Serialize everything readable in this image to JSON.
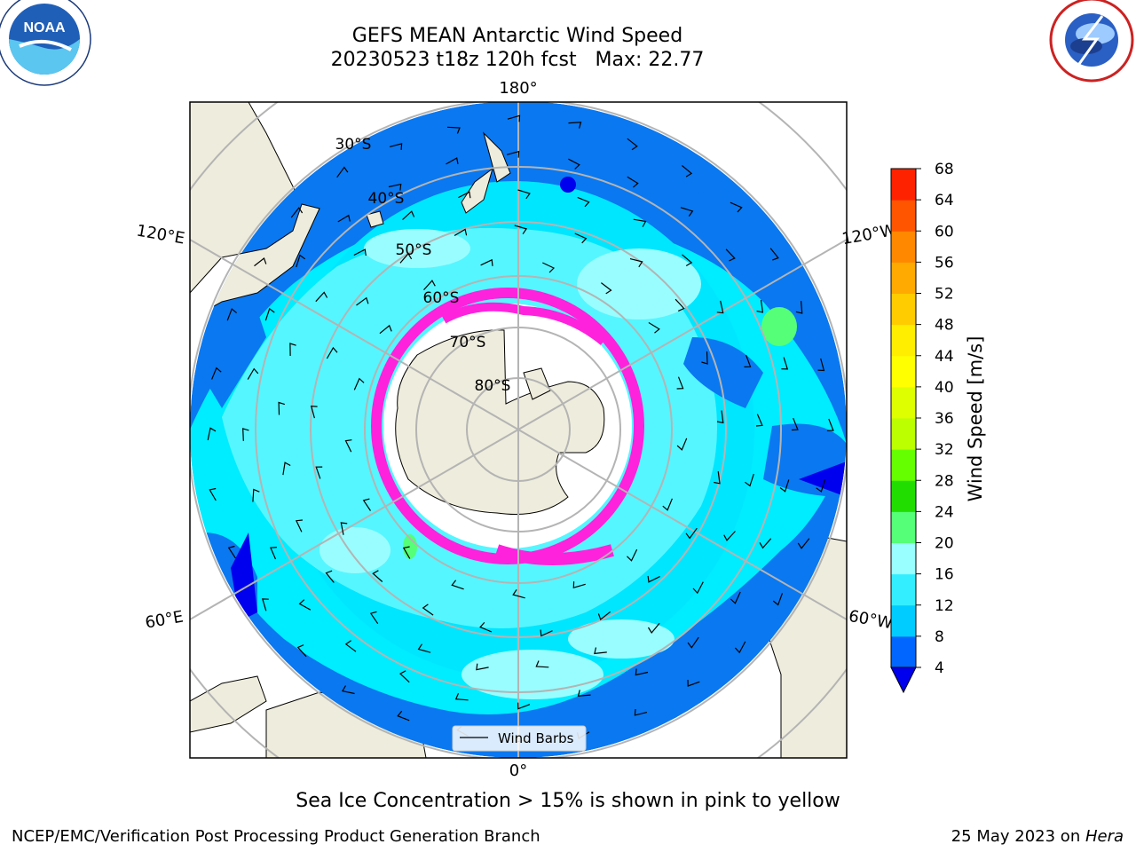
{
  "title": "GEFS MEAN Antarctic Wind Speed",
  "subtitle": "20230523 t18z 120h fcst   Max: 22.77",
  "caption": "Sea Ice Concentration > 15% is shown in pink to yellow",
  "footer_left": "NCEP/EMC/Verification Post Processing Product Generation Branch",
  "footer_right_date": "25 May 2023 on ",
  "footer_right_host": "Hera",
  "logos": {
    "left": "NOAA",
    "right": "NATIONAL WEATHER SERVICE"
  },
  "map": {
    "projection": "south-polar-stereographic",
    "lon_labels": {
      "top": "180°",
      "bottom": "0°",
      "upper_left": "120°E",
      "upper_right": "120°W",
      "lower_left": "60°E",
      "lower_right": "60°W"
    },
    "lat_labels": [
      "30°S",
      "40°S",
      "50°S",
      "60°S",
      "70°S",
      "80°S"
    ],
    "legend": "Wind Barbs"
  },
  "colorbar": {
    "label": "Wind Speed [m/s]",
    "ticks": [
      "4",
      "8",
      "12",
      "16",
      "20",
      "24",
      "28",
      "32",
      "36",
      "40",
      "44",
      "48",
      "52",
      "56",
      "60",
      "64",
      "68"
    ],
    "colors": [
      "#0066ff",
      "#00ccff",
      "#33eeff",
      "#99ffff",
      "#55ff77",
      "#22dd00",
      "#66ff00",
      "#bbff00",
      "#ddff00",
      "#ffff00",
      "#ffee00",
      "#ffcc00",
      "#ffaa00",
      "#ff8800",
      "#ff5500",
      "#ff2200"
    ],
    "extend_color": "#0000ee"
  }
}
